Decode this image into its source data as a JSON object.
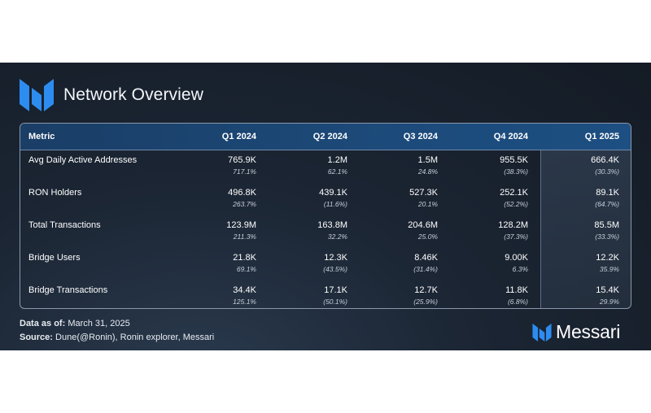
{
  "title": "Network Overview",
  "brand": {
    "name": "Messari",
    "logo_icon": "messari-m-logo",
    "accent": "#2d8cf0"
  },
  "table": {
    "columns": [
      "Metric",
      "Q1 2024",
      "Q2 2024",
      "Q3 2024",
      "Q4 2024",
      "Q1 2025"
    ],
    "highlight_column": "Q1 2025",
    "rows": [
      {
        "metric": "Avg Daily Active Addresses",
        "cells": [
          {
            "v": "765.9K",
            "p": "717.1%"
          },
          {
            "v": "1.2M",
            "p": "62.1%"
          },
          {
            "v": "1.5M",
            "p": "24.8%"
          },
          {
            "v": "955.5K",
            "p": "(38.3%)"
          },
          {
            "v": "666.4K",
            "p": "(30.3%)"
          }
        ]
      },
      {
        "metric": "RON Holders",
        "cells": [
          {
            "v": "496.8K",
            "p": "263.7%"
          },
          {
            "v": "439.1K",
            "p": "(11.6%)"
          },
          {
            "v": "527.3K",
            "p": "20.1%"
          },
          {
            "v": "252.1K",
            "p": "(52.2%)"
          },
          {
            "v": "89.1K",
            "p": "(64.7%)"
          }
        ]
      },
      {
        "metric": "Total Transactions",
        "cells": [
          {
            "v": "123.9M",
            "p": "211.3%"
          },
          {
            "v": "163.8M",
            "p": "32.2%"
          },
          {
            "v": "204.6M",
            "p": "25.0%"
          },
          {
            "v": "128.2M",
            "p": "(37.3%)"
          },
          {
            "v": "85.5M",
            "p": "(33.3%)"
          }
        ]
      },
      {
        "metric": "Bridge Users",
        "cells": [
          {
            "v": "21.8K",
            "p": "69.1%"
          },
          {
            "v": "12.3K",
            "p": "(43.5%)"
          },
          {
            "v": "8.46K",
            "p": "(31.4%)"
          },
          {
            "v": "9.00K",
            "p": "6.3%"
          },
          {
            "v": "12.2K",
            "p": "35.9%"
          }
        ]
      },
      {
        "metric": "Bridge Transactions",
        "cells": [
          {
            "v": "34.4K",
            "p": "125.1%"
          },
          {
            "v": "17.1K",
            "p": "(50.1%)"
          },
          {
            "v": "12.7K",
            "p": "(25.9%)"
          },
          {
            "v": "11.8K",
            "p": "(6.8%)"
          },
          {
            "v": "15.4K",
            "p": "29.9%"
          }
        ]
      }
    ]
  },
  "footer": {
    "data_as_of_label": "Data as of:",
    "data_as_of_value": "March 31, 2025",
    "source_label": "Source:",
    "source_value": "Dune(@Ronin), Ronin explorer, Messari"
  }
}
